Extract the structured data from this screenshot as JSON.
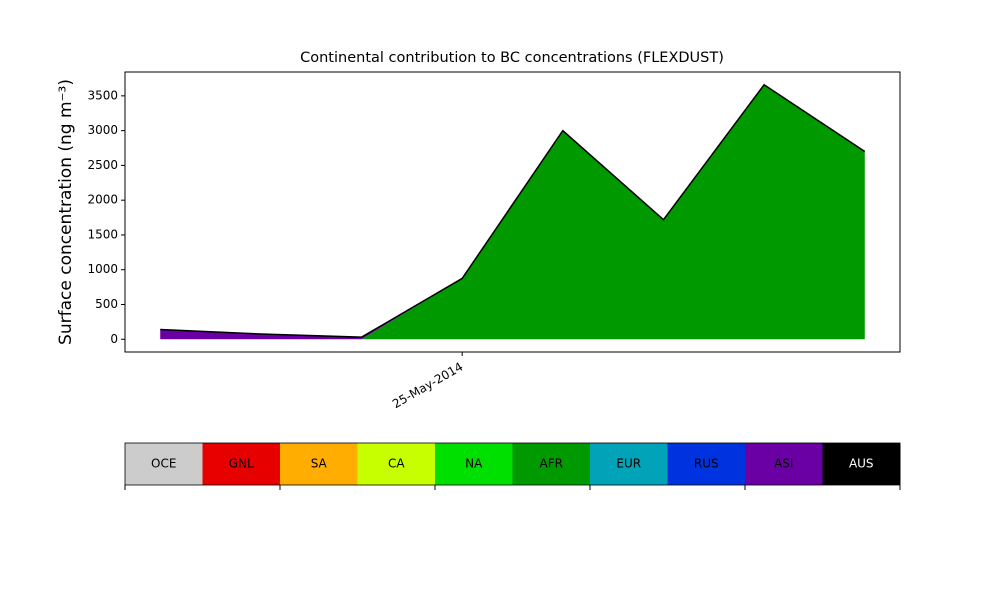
{
  "chart_data": {
    "type": "stackedarea",
    "title": "Continental contribution to BC concentrations (FLEXDUST)",
    "y_label": "Surface concentration (ng m⁻³)",
    "categories": [
      null,
      null,
      null,
      "25-May-2014",
      null,
      null,
      null,
      null
    ],
    "ylim": [
      -183,
      3843
    ],
    "yticks": [
      0,
      500,
      1000,
      1500,
      2000,
      2500,
      3000,
      3500
    ],
    "series": [
      {
        "name": "OCE",
        "color": "#cccccc",
        "values": [
          0,
          0,
          0,
          0,
          0,
          0,
          0,
          0
        ]
      },
      {
        "name": "GNL",
        "color": "#e60000",
        "values": [
          0,
          0,
          0,
          0,
          0,
          0,
          0,
          0
        ]
      },
      {
        "name": "SA",
        "color": "#ffad00",
        "values": [
          0,
          0,
          0,
          0,
          0,
          0,
          0,
          0
        ]
      },
      {
        "name": "CA",
        "color": "#c8ff00",
        "values": [
          0,
          0,
          0,
          0,
          0,
          0,
          0,
          0
        ]
      },
      {
        "name": "NA",
        "color": "#00e000",
        "values": [
          0,
          0,
          0,
          0,
          0,
          0,
          0,
          0
        ]
      },
      {
        "name": "AFR",
        "color": "#009900",
        "values": [
          0,
          0,
          0,
          875,
          3000,
          1720,
          3660,
          2700
        ]
      },
      {
        "name": "EUR",
        "color": "#00a3b8",
        "values": [
          0,
          0,
          0,
          0,
          0,
          0,
          0,
          0
        ]
      },
      {
        "name": "RUS",
        "color": "#0033e0",
        "values": [
          0,
          0,
          0,
          0,
          0,
          0,
          0,
          0
        ]
      },
      {
        "name": "ASI",
        "color": "#6a00a3",
        "values": [
          140,
          75,
          30,
          0,
          0,
          0,
          0,
          0
        ]
      },
      {
        "name": "AUS",
        "color": "#000000",
        "values": [
          0,
          0,
          0,
          0,
          0,
          0,
          0,
          0
        ]
      }
    ]
  }
}
